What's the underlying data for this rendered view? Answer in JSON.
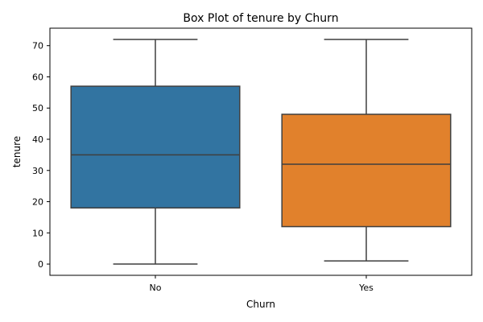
{
  "chart_data": {
    "type": "box",
    "title": "Box Plot of tenure by Churn",
    "xlabel": "Churn",
    "ylabel": "tenure",
    "categories": [
      "No",
      "Yes"
    ],
    "ylim": [
      -3.6,
      75.6
    ],
    "yticks": [
      0,
      10,
      20,
      30,
      40,
      50,
      60,
      70
    ],
    "grid": false,
    "boxes": [
      {
        "category": "No",
        "whisker_low": 0,
        "q1": 18,
        "median": 35,
        "q3": 57,
        "whisker_high": 72,
        "color": "#3274a1"
      },
      {
        "category": "Yes",
        "whisker_low": 1,
        "q1": 12,
        "median": 32,
        "q3": 48,
        "whisker_high": 72,
        "color": "#e1812c"
      }
    ],
    "line_color": "#3f3f3f"
  }
}
